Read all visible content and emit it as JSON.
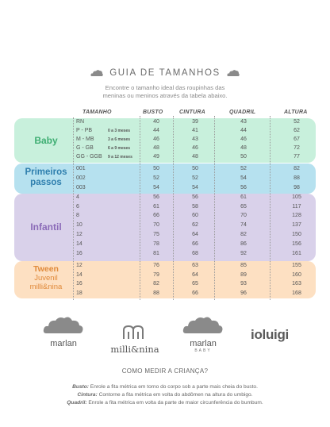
{
  "header": {
    "title": "GUIA DE TAMANHOS",
    "subtitle_line1": "Encontre o tamanho ideal das roupinhas das",
    "subtitle_line2": "meninas ou meninos através da tabela abaixo."
  },
  "columns": {
    "size": "TAMANHO",
    "bust": "BUSTO",
    "waist": "CINTURA",
    "hip": "QUADRIL",
    "height": "ALTURA"
  },
  "groups": {
    "baby": "Baby",
    "primeiros_line1": "Primeiros",
    "primeiros_line2": "passos",
    "infantil": "Infantil",
    "tween": "Tween",
    "tween_sub1": "Juvenil",
    "tween_sub2": "milli&nina"
  },
  "rows": [
    {
      "size": "RN",
      "months": "",
      "bust": "40",
      "waist": "39",
      "hip": "43",
      "height": "52"
    },
    {
      "size": "P - PB",
      "months": "0 a 3 meses",
      "bust": "44",
      "waist": "41",
      "hip": "44",
      "height": "62"
    },
    {
      "size": "M - MB",
      "months": "3 a 6 meses",
      "bust": "46",
      "waist": "43",
      "hip": "46",
      "height": "67"
    },
    {
      "size": "G - GB",
      "months": "6 a 9 meses",
      "bust": "48",
      "waist": "46",
      "hip": "48",
      "height": "72"
    },
    {
      "size": "GG - GGB",
      "months": "9 a 12 meses",
      "bust": "49",
      "waist": "48",
      "hip": "50",
      "height": "77"
    },
    {
      "size": "001",
      "months": "",
      "bust": "50",
      "waist": "50",
      "hip": "52",
      "height": "82"
    },
    {
      "size": "002",
      "months": "",
      "bust": "52",
      "waist": "52",
      "hip": "54",
      "height": "88"
    },
    {
      "size": "003",
      "months": "",
      "bust": "54",
      "waist": "54",
      "hip": "56",
      "height": "98"
    },
    {
      "size": "4",
      "months": "",
      "bust": "56",
      "waist": "56",
      "hip": "61",
      "height": "105"
    },
    {
      "size": "6",
      "months": "",
      "bust": "61",
      "waist": "58",
      "hip": "65",
      "height": "117"
    },
    {
      "size": "8",
      "months": "",
      "bust": "66",
      "waist": "60",
      "hip": "70",
      "height": "128"
    },
    {
      "size": "10",
      "months": "",
      "bust": "70",
      "waist": "62",
      "hip": "74",
      "height": "137"
    },
    {
      "size": "12",
      "months": "",
      "bust": "75",
      "waist": "64",
      "hip": "82",
      "height": "150"
    },
    {
      "size": "14",
      "months": "",
      "bust": "78",
      "waist": "66",
      "hip": "86",
      "height": "156"
    },
    {
      "size": "16",
      "months": "",
      "bust": "81",
      "waist": "68",
      "hip": "92",
      "height": "161"
    },
    {
      "size": "12",
      "months": "",
      "bust": "76",
      "waist": "63",
      "hip": "85",
      "height": "155"
    },
    {
      "size": "14",
      "months": "",
      "bust": "79",
      "waist": "64",
      "hip": "89",
      "height": "160"
    },
    {
      "size": "16",
      "months": "",
      "bust": "82",
      "waist": "65",
      "hip": "93",
      "height": "163"
    },
    {
      "size": "18",
      "months": "",
      "bust": "88",
      "waist": "66",
      "hip": "96",
      "height": "168"
    }
  ],
  "brands": {
    "marlan": "marlan",
    "milli": "milli&nina",
    "marlan_baby": "marlan",
    "marlan_baby_sub": "BABY",
    "ioluigi": "ioluigi"
  },
  "howto": {
    "title": "COMO MEDIR A CRIANÇA?",
    "bust_label": "Busto:",
    "bust_text": " Enrole a fita métrica em torno do corpo sob a parte mais cheia do busto.",
    "waist_label": "Cintura:",
    "waist_text": " Contorne a fita métrica em volta do abdômen na altura do umbigo.",
    "hip_label": "Quadril:",
    "hip_text": " Enrole a fita métrica em volta da parte de maior circunferência do bumbum."
  },
  "colors": {
    "baby": "#c8f0dc",
    "primeiros": "#b6e1ef",
    "infantil": "#d9d1ea",
    "tween": "#fde0c2"
  }
}
